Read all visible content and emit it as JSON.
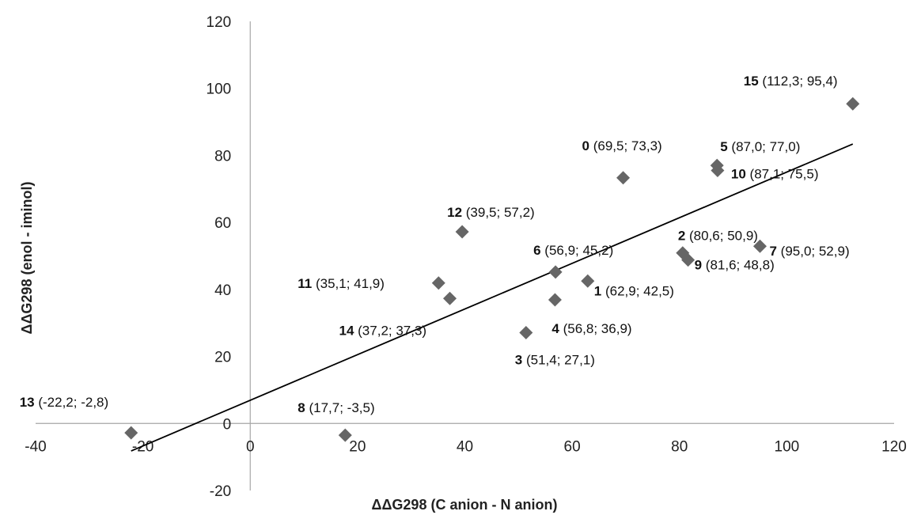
{
  "chart_data": {
    "type": "scatter",
    "title": "",
    "xlabel": "ΔΔG298 (C anion - N anion)",
    "ylabel": "ΔΔG298 (enol - iminol)",
    "xlim": [
      -40,
      120
    ],
    "ylim": [
      -20,
      120
    ],
    "x_ticks": [
      "-40",
      "-20",
      "0",
      "20",
      "40",
      "60",
      "80",
      "100",
      "120"
    ],
    "y_ticks": [
      "-20",
      "0",
      "20",
      "40",
      "60",
      "80",
      "100",
      "120"
    ],
    "grid": false,
    "legend": "none",
    "marker_color": "#666666",
    "trendline": {
      "type": "linear",
      "x": [
        -22.2,
        112.3
      ],
      "y": [
        -8.2,
        83.4
      ]
    },
    "points": [
      {
        "id": "0",
        "coords": "(69,5; 73,3)",
        "x": 69.5,
        "y": 73.3
      },
      {
        "id": "1",
        "coords": "(62,9; 42,5)",
        "x": 62.9,
        "y": 42.5
      },
      {
        "id": "2",
        "coords": "(80,6; 50,9)",
        "x": 80.6,
        "y": 50.9
      },
      {
        "id": "3",
        "coords": "(51,4; 27,1)",
        "x": 51.4,
        "y": 27.1
      },
      {
        "id": "4",
        "coords": "(56,8; 36,9)",
        "x": 56.8,
        "y": 36.9
      },
      {
        "id": "5",
        "coords": "(87,0; 77,0)",
        "x": 87.0,
        "y": 77.0
      },
      {
        "id": "6",
        "coords": "(56,9; 45,2)",
        "x": 56.9,
        "y": 45.2
      },
      {
        "id": "7",
        "coords": "(95,0; 52,9)",
        "x": 95.0,
        "y": 52.9
      },
      {
        "id": "8",
        "coords": "(17,7; -3,5)",
        "x": 17.7,
        "y": -3.5
      },
      {
        "id": "9",
        "coords": "(81,6; 48,8)",
        "x": 81.6,
        "y": 48.8
      },
      {
        "id": "10",
        "coords": "(87,1; 75,5)",
        "x": 87.1,
        "y": 75.5
      },
      {
        "id": "11",
        "coords": "(35,1; 41,9)",
        "x": 35.1,
        "y": 41.9
      },
      {
        "id": "12",
        "coords": "(39,5; 57,2)",
        "x": 39.5,
        "y": 57.2
      },
      {
        "id": "13",
        "coords": "(-22,2; -2,8)",
        "x": -22.2,
        "y": -2.8
      },
      {
        "id": "14",
        "coords": "(37,2; 37,3)",
        "x": 37.2,
        "y": 37.3
      },
      {
        "id": "15",
        "coords": "(112,3; 95,4)",
        "x": 112.3,
        "y": 95.4
      }
    ]
  }
}
